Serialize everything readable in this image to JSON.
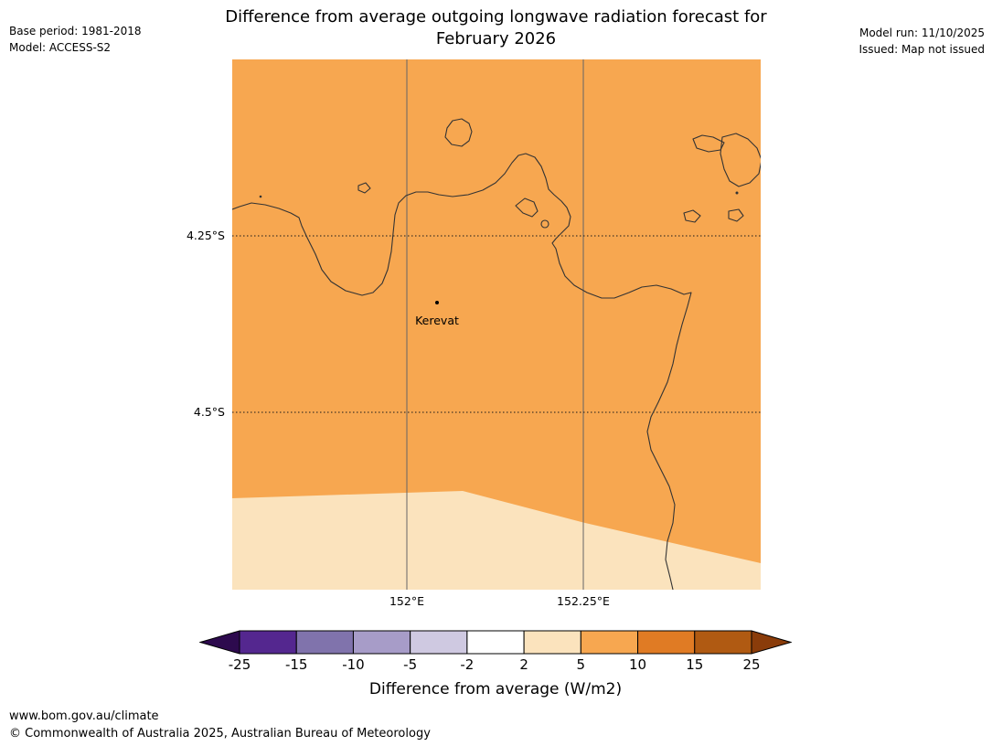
{
  "header": {
    "title_line1": "Difference from average outgoing longwave radiation forecast for",
    "title_line2": "February 2026",
    "info_left": {
      "base_period": "Base period: 1981-2018",
      "model": "Model: ACCESS-S2"
    },
    "info_right": {
      "model_run": "Model run: 11/10/2025",
      "issued": "Issued: Map not issued"
    }
  },
  "map": {
    "place": {
      "name": "Kerevat"
    },
    "lat_ticks": [
      "4.25°S",
      "4.5°S"
    ],
    "lon_ticks": [
      "152°E",
      "152.25°E"
    ],
    "colors": {
      "sea": "#f7a750",
      "band_2_5": "#fbe3bd",
      "coast": "#333333",
      "grid": "#666666",
      "grid_dotted": "#1a1a1a",
      "marker": "#000000"
    }
  },
  "colorbar": {
    "tick_labels": [
      "-25",
      "-15",
      "-10",
      "-5",
      "-2",
      "2",
      "5",
      "10",
      "15",
      "25"
    ],
    "segment_colors": [
      "#54278f",
      "#8073ac",
      "#a79cc8",
      "#cfc9e1",
      "#ffffff",
      "#fbe3bd",
      "#f7a750",
      "#e07b24",
      "#b05a12"
    ],
    "arrow_left_color": "#2d0a4e",
    "arrow_right_color": "#8a3c0a",
    "caption": "Difference from average (W/m2)"
  },
  "footer": {
    "url": "www.bom.gov.au/climate",
    "copyright": "© Commonwealth of Australia 2025, Australian Bureau of Meteorology"
  }
}
